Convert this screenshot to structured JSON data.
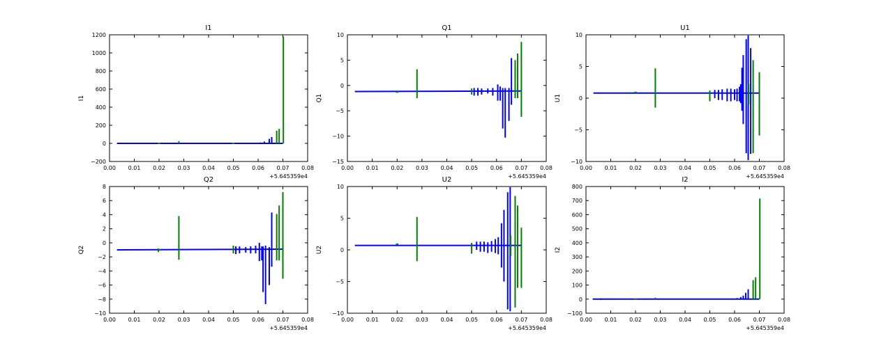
{
  "figure": {
    "colors": {
      "blue": "#0000ff",
      "green": "#007f00"
    },
    "x_offset_label": "+5.645359e4"
  },
  "chart_data": [
    {
      "type": "line",
      "title": "I1",
      "xlabel": "",
      "ylabel": "I1",
      "xlim": [
        0.0,
        0.08
      ],
      "ylim": [
        -200,
        1200
      ],
      "xticks": [
        "0.00",
        "0.01",
        "0.02",
        "0.03",
        "0.04",
        "0.05",
        "0.06",
        "0.07",
        "0.08"
      ],
      "yticks": [
        "−200",
        "0",
        "200",
        "400",
        "600",
        "800",
        "1000",
        "1200"
      ],
      "ytick_values": [
        -200,
        0,
        200,
        400,
        600,
        800,
        1000,
        1200
      ],
      "x_offset_text": "+5.645359e4",
      "baseline": [
        {
          "color": "blue",
          "x": [
            0.003,
            0.07
          ],
          "y": [
            0,
            0
          ]
        },
        {
          "color": "green",
          "x": [
            0.0195,
            0.0205
          ],
          "y": [
            0,
            0
          ]
        },
        {
          "color": "green",
          "x": [
            0.0495,
            0.0505
          ],
          "y": [
            0,
            0
          ]
        }
      ],
      "spikes": [
        {
          "color": "blue",
          "x": 0.008,
          "y0": -5,
          "y1": 5
        },
        {
          "color": "blue",
          "x": 0.036,
          "y0": -5,
          "y1": 5
        },
        {
          "color": "blue",
          "x": 0.061,
          "y0": -5,
          "y1": 10
        },
        {
          "color": "blue",
          "x": 0.0625,
          "y0": -5,
          "y1": 20
        },
        {
          "color": "blue",
          "x": 0.0645,
          "y0": -5,
          "y1": 50
        },
        {
          "color": "blue",
          "x": 0.0655,
          "y0": -5,
          "y1": 70
        },
        {
          "color": "green",
          "x": 0.028,
          "y0": 0,
          "y1": 25
        },
        {
          "color": "green",
          "x": 0.0675,
          "y0": 0,
          "y1": 140
        },
        {
          "color": "green",
          "x": 0.0685,
          "y0": 0,
          "y1": 160
        },
        {
          "color": "green",
          "x": 0.0702,
          "y0": 0,
          "y1": 1180
        }
      ]
    },
    {
      "type": "line",
      "title": "Q1",
      "xlabel": "",
      "ylabel": "Q1",
      "xlim": [
        0.0,
        0.08
      ],
      "ylim": [
        -15,
        10
      ],
      "xticks": [
        "0.00",
        "0.01",
        "0.02",
        "0.03",
        "0.04",
        "0.05",
        "0.06",
        "0.07",
        "0.08"
      ],
      "yticks": [
        "−15",
        "−10",
        "−5",
        "0",
        "5",
        "10"
      ],
      "ytick_values": [
        -15,
        -10,
        -5,
        0,
        5,
        10
      ],
      "x_offset_text": "+5.645359e4",
      "baseline": [
        {
          "color": "blue",
          "x": [
            0.003,
            0.07
          ],
          "y": [
            -1.2,
            -1.1
          ]
        },
        {
          "color": "green",
          "x": [
            0.0195,
            0.0205
          ],
          "y": [
            -1.3,
            -1.3
          ]
        }
      ],
      "spikes": [
        {
          "color": "blue",
          "x": 0.051,
          "y0": -2,
          "y1": -0.5
        },
        {
          "color": "blue",
          "x": 0.0525,
          "y0": -2,
          "y1": -0.5
        },
        {
          "color": "blue",
          "x": 0.054,
          "y0": -1.8,
          "y1": -0.6
        },
        {
          "color": "blue",
          "x": 0.0565,
          "y0": -1.6,
          "y1": -0.6
        },
        {
          "color": "blue",
          "x": 0.0585,
          "y0": -2,
          "y1": -0.5
        },
        {
          "color": "blue",
          "x": 0.0605,
          "y0": -3,
          "y1": 0.2
        },
        {
          "color": "blue",
          "x": 0.0615,
          "y0": -3,
          "y1": -0.2
        },
        {
          "color": "blue",
          "x": 0.0625,
          "y0": -8.5,
          "y1": -0.5
        },
        {
          "color": "blue",
          "x": 0.0635,
          "y0": -10.3,
          "y1": -0.5
        },
        {
          "color": "blue",
          "x": 0.065,
          "y0": -7,
          "y1": -0.5
        },
        {
          "color": "blue",
          "x": 0.066,
          "y0": -3.8,
          "y1": 5.4
        },
        {
          "color": "green",
          "x": 0.028,
          "y0": -2.5,
          "y1": 3.2
        },
        {
          "color": "green",
          "x": 0.05,
          "y0": -1.8,
          "y1": -0.6
        },
        {
          "color": "green",
          "x": 0.0675,
          "y0": -2.5,
          "y1": 5
        },
        {
          "color": "green",
          "x": 0.0685,
          "y0": -2.5,
          "y1": 6.3
        },
        {
          "color": "green",
          "x": 0.07,
          "y0": -6.2,
          "y1": 8.6
        }
      ]
    },
    {
      "type": "line",
      "title": "U1",
      "xlabel": "",
      "ylabel": "U1",
      "xlim": [
        0.0,
        0.08
      ],
      "ylim": [
        -10,
        10
      ],
      "xticks": [
        "0.00",
        "0.01",
        "0.02",
        "0.03",
        "0.04",
        "0.05",
        "0.06",
        "0.07",
        "0.08"
      ],
      "yticks": [
        "−10",
        "−5",
        "0",
        "5",
        "10"
      ],
      "ytick_values": [
        -10,
        -5,
        0,
        5,
        10
      ],
      "x_offset_text": "+5.645359e4",
      "baseline": [
        {
          "color": "blue",
          "x": [
            0.003,
            0.07
          ],
          "y": [
            0.8,
            0.8
          ]
        },
        {
          "color": "green",
          "x": [
            0.0195,
            0.0205
          ],
          "y": [
            0.9,
            0.9
          ]
        }
      ],
      "spikes": [
        {
          "color": "blue",
          "x": 0.052,
          "y0": 0,
          "y1": 1.3
        },
        {
          "color": "blue",
          "x": 0.0535,
          "y0": -0.3,
          "y1": 1.3
        },
        {
          "color": "blue",
          "x": 0.055,
          "y0": -0.3,
          "y1": 1.4
        },
        {
          "color": "blue",
          "x": 0.057,
          "y0": -0.5,
          "y1": 1.5
        },
        {
          "color": "blue",
          "x": 0.0585,
          "y0": -0.5,
          "y1": 1.5
        },
        {
          "color": "blue",
          "x": 0.06,
          "y0": -0.3,
          "y1": 1.4
        },
        {
          "color": "blue",
          "x": 0.061,
          "y0": -0.5,
          "y1": 1.5
        },
        {
          "color": "blue",
          "x": 0.062,
          "y0": -0.5,
          "y1": 1.8
        },
        {
          "color": "blue",
          "x": 0.0625,
          "y0": -0.8,
          "y1": 2.2
        },
        {
          "color": "blue",
          "x": 0.063,
          "y0": -2,
          "y1": 4.8
        },
        {
          "color": "blue",
          "x": 0.0635,
          "y0": -4.1,
          "y1": 6.8
        },
        {
          "color": "blue",
          "x": 0.0647,
          "y0": -8.7,
          "y1": 9.3
        },
        {
          "color": "blue",
          "x": 0.0655,
          "y0": -9.8,
          "y1": 9.9
        },
        {
          "color": "blue",
          "x": 0.0665,
          "y0": -8.8,
          "y1": 7.9
        },
        {
          "color": "green",
          "x": 0.028,
          "y0": -1.5,
          "y1": 4.7
        },
        {
          "color": "green",
          "x": 0.05,
          "y0": -0.5,
          "y1": 1.2
        },
        {
          "color": "green",
          "x": 0.0657,
          "y0": -1,
          "y1": 2.2
        },
        {
          "color": "green",
          "x": 0.0675,
          "y0": -8.7,
          "y1": 6
        },
        {
          "color": "green",
          "x": 0.07,
          "y0": -5.9,
          "y1": 4.1
        }
      ]
    },
    {
      "type": "line",
      "title": "Q2",
      "xlabel": "",
      "ylabel": "Q2",
      "xlim": [
        0.0,
        0.08
      ],
      "ylim": [
        -10,
        8
      ],
      "xticks": [
        "0.00",
        "0.01",
        "0.02",
        "0.03",
        "0.04",
        "0.05",
        "0.06",
        "0.07",
        "0.08"
      ],
      "yticks": [
        "−10",
        "−8",
        "−6",
        "−4",
        "−2",
        "0",
        "2",
        "4",
        "6",
        "8"
      ],
      "ytick_values": [
        -10,
        -8,
        -6,
        -4,
        -2,
        0,
        2,
        4,
        6,
        8
      ],
      "x_offset_text": "+5.645359e4",
      "baseline": [
        {
          "color": "blue",
          "x": [
            0.003,
            0.07
          ],
          "y": [
            -1.0,
            -0.9
          ]
        },
        {
          "color": "green",
          "x": [
            0.0195,
            0.0205
          ],
          "y": [
            -1.0,
            -1.0
          ]
        }
      ],
      "spikes": [
        {
          "color": "blue",
          "x": 0.051,
          "y0": -1.6,
          "y1": -0.5
        },
        {
          "color": "blue",
          "x": 0.0525,
          "y0": -1.5,
          "y1": -0.5
        },
        {
          "color": "blue",
          "x": 0.055,
          "y0": -1.4,
          "y1": -0.6
        },
        {
          "color": "blue",
          "x": 0.057,
          "y0": -1.5,
          "y1": -0.5
        },
        {
          "color": "blue",
          "x": 0.059,
          "y0": -1.5,
          "y1": -0.4
        },
        {
          "color": "blue",
          "x": 0.0605,
          "y0": -2.6,
          "y1": 0.0
        },
        {
          "color": "blue",
          "x": 0.0615,
          "y0": -2.5,
          "y1": -0.5
        },
        {
          "color": "blue",
          "x": 0.062,
          "y0": -7,
          "y1": -0.5
        },
        {
          "color": "blue",
          "x": 0.063,
          "y0": -8.7,
          "y1": -0.4
        },
        {
          "color": "blue",
          "x": 0.0645,
          "y0": -6,
          "y1": -0.6
        },
        {
          "color": "blue",
          "x": 0.0655,
          "y0": -3.4,
          "y1": 4.3
        },
        {
          "color": "green",
          "x": 0.0197,
          "y0": -1.3,
          "y1": -0.8
        },
        {
          "color": "green",
          "x": 0.028,
          "y0": -2.4,
          "y1": 3.8
        },
        {
          "color": "green",
          "x": 0.05,
          "y0": -1.5,
          "y1": -0.4
        },
        {
          "color": "green",
          "x": 0.0675,
          "y0": -2.5,
          "y1": 4.1
        },
        {
          "color": "green",
          "x": 0.0685,
          "y0": -2.5,
          "y1": 5.3
        },
        {
          "color": "green",
          "x": 0.07,
          "y0": -5.1,
          "y1": 7.2
        }
      ]
    },
    {
      "type": "line",
      "title": "U2",
      "xlabel": "",
      "ylabel": "U2",
      "xlim": [
        0.0,
        0.08
      ],
      "ylim": [
        -10,
        10
      ],
      "xticks": [
        "0.00",
        "0.01",
        "0.02",
        "0.03",
        "0.04",
        "0.05",
        "0.06",
        "0.07",
        "0.08"
      ],
      "yticks": [
        "−10",
        "−5",
        "0",
        "5",
        "10"
      ],
      "ytick_values": [
        -10,
        -5,
        0,
        5,
        10
      ],
      "x_offset_text": "+5.645359e4",
      "baseline": [
        {
          "color": "blue",
          "x": [
            0.003,
            0.07
          ],
          "y": [
            0.7,
            0.7
          ]
        },
        {
          "color": "green",
          "x": [
            0.0195,
            0.0205
          ],
          "y": [
            0.9,
            0.9
          ]
        }
      ],
      "spikes": [
        {
          "color": "blue",
          "x": 0.052,
          "y0": 0,
          "y1": 1.3
        },
        {
          "color": "blue",
          "x": 0.0535,
          "y0": -0.3,
          "y1": 1.3
        },
        {
          "color": "blue",
          "x": 0.055,
          "y0": -0.3,
          "y1": 1.3
        },
        {
          "color": "blue",
          "x": 0.0565,
          "y0": -0.5,
          "y1": 1.2
        },
        {
          "color": "blue",
          "x": 0.058,
          "y0": -0.3,
          "y1": 1.4
        },
        {
          "color": "blue",
          "x": 0.0595,
          "y0": -0.5,
          "y1": 1.7
        },
        {
          "color": "blue",
          "x": 0.0607,
          "y0": -0.7,
          "y1": 2
        },
        {
          "color": "blue",
          "x": 0.062,
          "y0": -2.8,
          "y1": 4.2
        },
        {
          "color": "blue",
          "x": 0.063,
          "y0": -5,
          "y1": 6.3
        },
        {
          "color": "blue",
          "x": 0.0645,
          "y0": -9.4,
          "y1": 9.1
        },
        {
          "color": "blue",
          "x": 0.0655,
          "y0": -9.7,
          "y1": 9.9
        },
        {
          "color": "green",
          "x": 0.028,
          "y0": -1.8,
          "y1": 5.2
        },
        {
          "color": "green",
          "x": 0.05,
          "y0": -0.6,
          "y1": 1.1
        },
        {
          "color": "green",
          "x": 0.0657,
          "y0": -1,
          "y1": 2.3
        },
        {
          "color": "green",
          "x": 0.0675,
          "y0": -9.1,
          "y1": 8.5
        },
        {
          "color": "green",
          "x": 0.0685,
          "y0": -6,
          "y1": 7
        },
        {
          "color": "green",
          "x": 0.07,
          "y0": -6,
          "y1": 3.5
        }
      ]
    },
    {
      "type": "line",
      "title": "I2",
      "xlabel": "",
      "ylabel": "I2",
      "xlim": [
        0.0,
        0.08
      ],
      "ylim": [
        -100,
        800
      ],
      "xticks": [
        "0.00",
        "0.01",
        "0.02",
        "0.03",
        "0.04",
        "0.05",
        "0.06",
        "0.07",
        "0.08"
      ],
      "yticks": [
        "−100",
        "0",
        "100",
        "200",
        "300",
        "400",
        "500",
        "600",
        "700",
        "800"
      ],
      "ytick_values": [
        -100,
        0,
        100,
        200,
        300,
        400,
        500,
        600,
        700,
        800
      ],
      "x_offset_text": "+5.645359e4",
      "baseline": [
        {
          "color": "blue",
          "x": [
            0.003,
            0.07
          ],
          "y": [
            0,
            0
          ]
        },
        {
          "color": "green",
          "x": [
            0.0195,
            0.0205
          ],
          "y": [
            0,
            0
          ]
        }
      ],
      "spikes": [
        {
          "color": "blue",
          "x": 0.003,
          "y0": -5,
          "y1": 5
        },
        {
          "color": "blue",
          "x": 0.006,
          "y0": -5,
          "y1": 5
        },
        {
          "color": "blue",
          "x": 0.009,
          "y0": -4,
          "y1": 4
        },
        {
          "color": "blue",
          "x": 0.061,
          "y0": -3,
          "y1": 8
        },
        {
          "color": "blue",
          "x": 0.0625,
          "y0": -3,
          "y1": 15
        },
        {
          "color": "blue",
          "x": 0.0635,
          "y0": -3,
          "y1": 25
        },
        {
          "color": "blue",
          "x": 0.0645,
          "y0": -3,
          "y1": 45
        },
        {
          "color": "blue",
          "x": 0.0655,
          "y0": -3,
          "y1": 70
        },
        {
          "color": "green",
          "x": 0.028,
          "y0": 0,
          "y1": 10
        },
        {
          "color": "green",
          "x": 0.0675,
          "y0": 0,
          "y1": 135
        },
        {
          "color": "green",
          "x": 0.0685,
          "y0": 0,
          "y1": 155
        },
        {
          "color": "green",
          "x": 0.0702,
          "y0": 0,
          "y1": 715
        }
      ]
    }
  ]
}
